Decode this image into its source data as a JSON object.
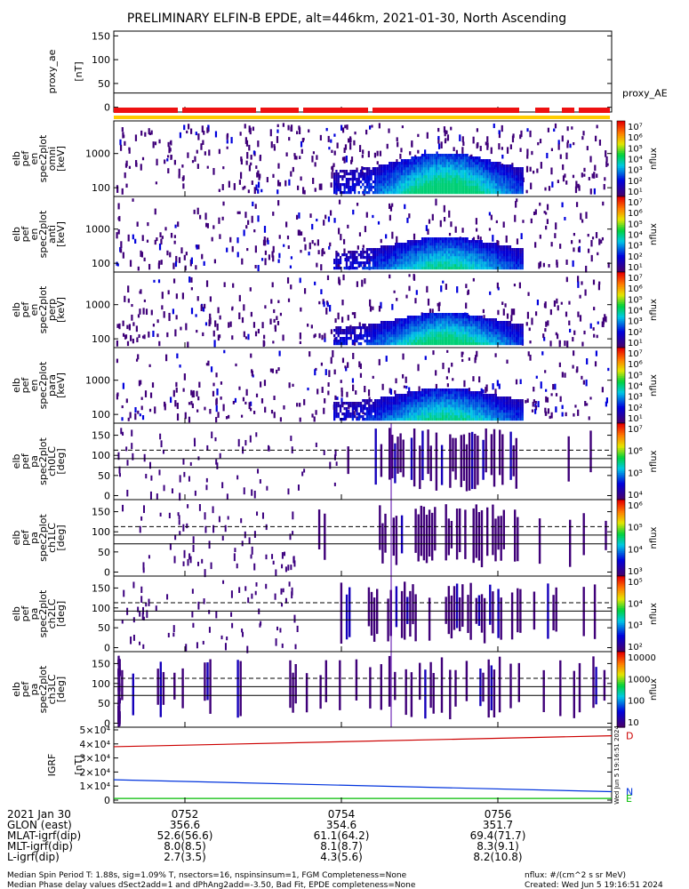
{
  "title": "PRELIMINARY ELFIN-B EPDE, alt=446km, 2021-01-30, North Ascending",
  "chart_data": [
    {
      "type": "line",
      "panel": "proxy_ae",
      "ylabel": [
        "proxy_ae",
        "[nT]"
      ],
      "yticks": [
        "150",
        "100",
        "50",
        "0"
      ],
      "ylim": [
        -10,
        160
      ],
      "series": [
        {
          "name": "proxy_AE",
          "value": 30,
          "color": "#000000"
        }
      ],
      "legend": "proxy_AE"
    },
    {
      "type": "heatmap",
      "panel": "spec-energy-1",
      "ylabel": [
        "elb",
        "pef",
        "en",
        "spec2plot",
        "omni",
        "[keV]"
      ],
      "yticks": [
        "1000",
        "100"
      ],
      "scale": "log",
      "colorbar_ticks": [
        "10⁷",
        "10⁶",
        "10⁵",
        "10⁴",
        "10³",
        "10²",
        "10¹"
      ],
      "colorbar_label": "nflux"
    },
    {
      "type": "heatmap",
      "panel": "spec-energy-2",
      "ylabel": [
        "elb",
        "pef",
        "en",
        "spec2plot",
        "anti",
        "[keV]"
      ],
      "yticks": [
        "1000",
        "100"
      ],
      "scale": "log",
      "colorbar_ticks": [
        "10⁷",
        "10⁶",
        "10⁵",
        "10⁴",
        "10³",
        "10²",
        "10¹"
      ],
      "colorbar_label": "nflux"
    },
    {
      "type": "heatmap",
      "panel": "spec-energy-3",
      "ylabel": [
        "elb",
        "pef",
        "en",
        "spec2plot",
        "perp",
        "[keV]"
      ],
      "yticks": [
        "1000",
        "100"
      ],
      "scale": "log",
      "colorbar_ticks": [
        "10⁷",
        "10⁶",
        "10⁵",
        "10⁴",
        "10³",
        "10²",
        "10¹"
      ],
      "colorbar_label": "nflux"
    },
    {
      "type": "heatmap",
      "panel": "spec-energy-4",
      "ylabel": [
        "elb",
        "pef",
        "en",
        "spec2plot",
        "para",
        "[keV]"
      ],
      "yticks": [
        "1000",
        "100"
      ],
      "scale": "log",
      "colorbar_ticks": [
        "10⁷",
        "10⁶",
        "10⁵",
        "10⁴",
        "10³",
        "10²",
        "10¹"
      ],
      "colorbar_label": "nflux"
    },
    {
      "type": "heatmap",
      "panel": "spec-pa-ch0",
      "ylabel": [
        "elb",
        "pef",
        "pa",
        "spec2plot",
        "ch0LC",
        "[deg]"
      ],
      "yticks": [
        "150",
        "100",
        "50",
        "0"
      ],
      "ylim": [
        -10,
        180
      ],
      "colorbar_ticks": [
        "10⁷",
        "10⁶",
        "10⁵",
        "10⁴"
      ],
      "colorbar_label": "nflux"
    },
    {
      "type": "heatmap",
      "panel": "spec-pa-ch1",
      "ylabel": [
        "elb",
        "pef",
        "pa",
        "spec2plot",
        "ch1LC",
        "[deg]"
      ],
      "yticks": [
        "150",
        "100",
        "50",
        "0"
      ],
      "ylim": [
        -10,
        180
      ],
      "colorbar_ticks": [
        "10⁶",
        "10⁵",
        "10⁴",
        "10³"
      ],
      "colorbar_label": "nflux"
    },
    {
      "type": "heatmap",
      "panel": "spec-pa-ch2",
      "ylabel": [
        "elb",
        "pef",
        "pa",
        "spec2plot",
        "ch2LC",
        "[deg]"
      ],
      "yticks": [
        "150",
        "100",
        "50",
        "0"
      ],
      "ylim": [
        -10,
        180
      ],
      "colorbar_ticks": [
        "10⁵",
        "10⁴",
        "10³",
        "10²"
      ],
      "colorbar_label": "nflux"
    },
    {
      "type": "heatmap",
      "panel": "spec-pa-ch3",
      "ylabel": [
        "elb",
        "pef",
        "pa",
        "spec2plot",
        "ch3LC",
        "[deg]"
      ],
      "yticks": [
        "150",
        "100",
        "50",
        "0"
      ],
      "ylim": [
        -10,
        180
      ],
      "colorbar_ticks": [
        "10000",
        "1000",
        "100",
        "10"
      ],
      "colorbar_label": "nflux"
    },
    {
      "type": "line",
      "panel": "igrf",
      "ylabel": [
        "IGRF",
        "[nT]"
      ],
      "yticks": [
        "5×10⁴",
        "4×10⁴",
        "3×10⁴",
        "2×10⁴",
        "1×10⁴",
        "0"
      ],
      "ylim": [
        0,
        50000
      ],
      "series": [
        {
          "name": "D",
          "color": "#cc0000",
          "start": 38000,
          "end": 45800
        },
        {
          "name": "N",
          "color": "#0033dd",
          "start": 14500,
          "end": 6000
        },
        {
          "name": "E",
          "color": "#00bb00",
          "start": 1200,
          "end": 1200
        }
      ],
      "side_note": "Wed Jun  5 19:16:51 2024"
    }
  ],
  "time_axis": {
    "date": "2021 Jan 30",
    "ticks": [
      "0752",
      "0754",
      "0756"
    ],
    "rows": [
      {
        "label": "GLON (east)",
        "values": [
          "356.6",
          "354.6",
          "351.7"
        ]
      },
      {
        "label": "MLAT-igrf(dip)",
        "values": [
          "52.6(56.6)",
          "61.1(64.2)",
          "69.4(71.7)"
        ]
      },
      {
        "label": "MLT-igrf(dip)",
        "values": [
          "8.0(8.5)",
          "8.1(8.7)",
          "8.3(9.1)"
        ]
      },
      {
        "label": "L-igrf(dip)",
        "values": [
          "2.7(3.5)",
          "4.3(5.6)",
          "8.2(10.8)"
        ]
      }
    ]
  },
  "footer": {
    "line1": "Median Spin Period T: 1.88s, sig=1.09% T, nsectors=16, nspinsinsum=1, FGM Completeness=None",
    "line2": "Median Phase delay values dSect2add=1 and dPhAng2add=-3.50, Bad Fit, EPDE completeness=None",
    "units": "nflux: #/(cm^2 s sr MeV)",
    "created": "Created: Wed Jun  5 19:16:51 2024"
  },
  "colors": {
    "bar_red": "#ee1111",
    "bar_yellow": "#ffcc00"
  }
}
